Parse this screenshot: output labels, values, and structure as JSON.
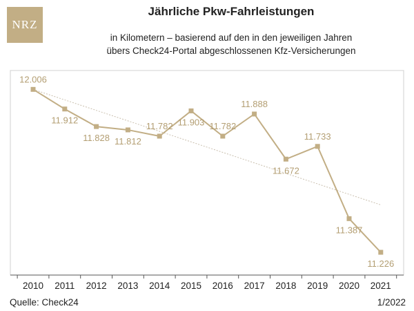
{
  "brand": {
    "logo_text": "NRZ",
    "color": "#C2AE85"
  },
  "header": {
    "title": "Jährliche Pkw-Fahrleistungen",
    "subtitle_line1": "in Kilometern – basierend auf den in den jeweiligen Jahren",
    "subtitle_line2": "übers Check24-Portal abgeschlossenen Kfz-Versicherungen"
  },
  "footer": {
    "source": "Quelle: Check24",
    "date": "1/2022"
  },
  "chart_data": {
    "type": "line",
    "title": "Jährliche Pkw-Fahrleistungen",
    "xlabel": "",
    "ylabel": "",
    "categories": [
      "2010",
      "2011",
      "2012",
      "2013",
      "2014",
      "2015",
      "2016",
      "2017",
      "2018",
      "2019",
      "2020",
      "2021"
    ],
    "series": [
      {
        "values": [
          12006,
          11912,
          11828,
          11812,
          11782,
          11903,
          11782,
          11888,
          11672,
          11733,
          11387,
          11226
        ],
        "labels": [
          "12.006",
          "11.912",
          "11.828",
          "11.812",
          "11.782",
          "11.903",
          "11.782",
          "11.888",
          "11.672",
          "11.733",
          "11.387",
          "11.226"
        ]
      }
    ],
    "trendline": {
      "style": "dotted",
      "start": 12006,
      "end": 11453
    },
    "marker": "square",
    "ylim": [
      11150,
      12060
    ],
    "grid": false,
    "line_color": "#C2AE85",
    "label_color": "#B39E72",
    "trend_color": "#C9BFAE",
    "axis_color": "#555555"
  }
}
